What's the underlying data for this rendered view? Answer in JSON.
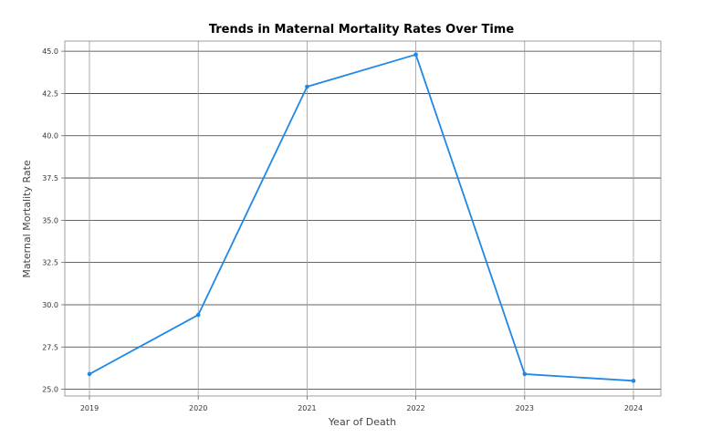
{
  "chart_data": {
    "type": "line",
    "title": "Trends in Maternal Mortality Rates Over Time",
    "xlabel": "Year of Death",
    "ylabel": "Maternal Mortality Rate",
    "categories": [
      "2019",
      "2020",
      "2021",
      "2022",
      "2023",
      "2024"
    ],
    "series": [
      {
        "values": [
          25.9,
          29.4,
          42.9,
          44.8,
          25.9,
          25.5
        ]
      }
    ],
    "ylim": [
      24.6,
      45.6
    ],
    "yticks": [
      25.0,
      27.5,
      30.0,
      32.5,
      35.0,
      37.5,
      40.0,
      42.5,
      45.0
    ],
    "ytick_labels": [
      "25.0",
      "27.5",
      "30.0",
      "32.5",
      "35.0",
      "37.5",
      "40.0",
      "42.5",
      "45.0"
    ],
    "grid": true,
    "legend": "none",
    "colors": {
      "series": "#1f88e5"
    }
  }
}
